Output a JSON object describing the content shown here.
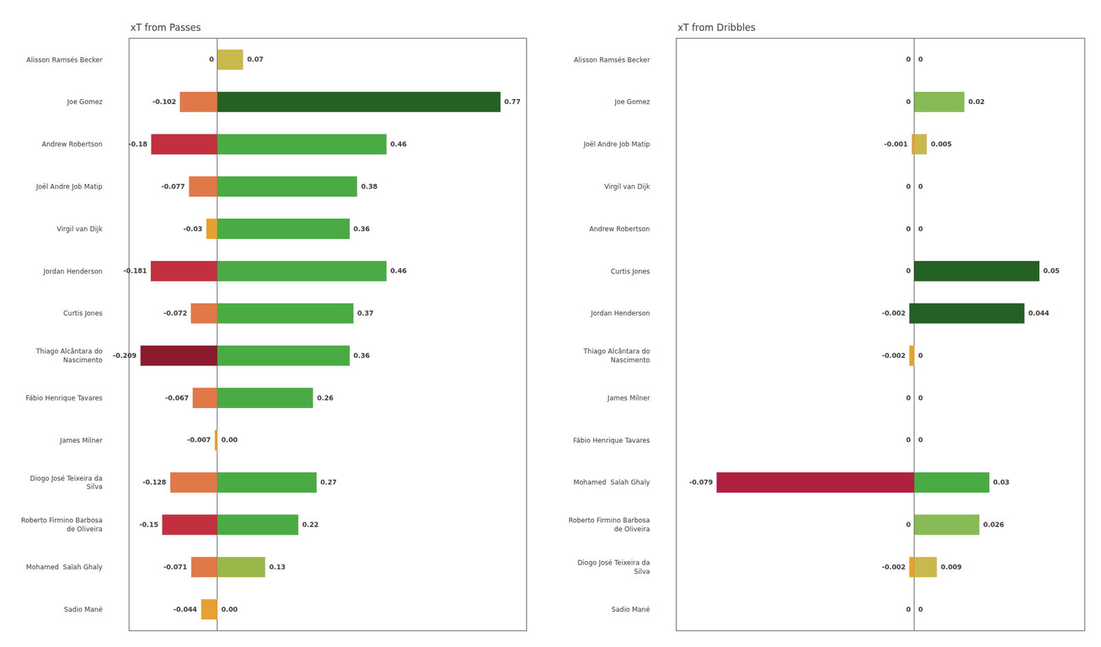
{
  "chart_data": [
    {
      "type": "bar",
      "orientation": "horizontal",
      "title": "xT from Passes",
      "categories": [
        "Alisson Ramsés Becker",
        "Joe Gomez",
        "Andrew Robertson",
        "Joël Andre Job Matip",
        "Virgil van Dijk",
        "Jordan Henderson",
        "Curtis Jones",
        "Thiago Alcântara do\nNascimento",
        "Fábio Henrique Tavares",
        "James Milner",
        "Diogo José Teixeira da\nSilva",
        "Roberto Firmino Barbosa\nde Oliveira",
        "Mohamed  Salah Ghaly",
        "Sadio Mané"
      ],
      "series": [
        {
          "values": [
            0.0,
            -0.102,
            -0.18,
            -0.077,
            -0.03,
            -0.181,
            -0.072,
            -0.209,
            -0.067,
            -0.007,
            -0.128,
            -0.15,
            -0.071,
            -0.044
          ],
          "value_labels": [
            "0",
            "-0.102",
            "-0.18",
            "-0.077",
            "-0.03",
            "-0.181",
            "-0.072",
            "-0.209",
            "-0.067",
            "-0.007",
            "-0.128",
            "-0.15",
            "-0.071",
            "-0.044"
          ],
          "colors": [
            null,
            "#e07848",
            "#c23040",
            "#e07848",
            "#e8a030",
            "#c23040",
            "#e07848",
            "#8b1a2e",
            "#e07848",
            "#e8a030",
            "#e07848",
            "#c23040",
            "#e07848",
            "#e8a030"
          ]
        },
        {
          "values": [
            0.07,
            0.77,
            0.46,
            0.38,
            0.36,
            0.46,
            0.37,
            0.36,
            0.26,
            0.0,
            0.27,
            0.22,
            0.13,
            0.0
          ],
          "value_labels": [
            "0.07",
            "0.77",
            "0.46",
            "0.38",
            "0.36",
            "0.46",
            "0.37",
            "0.36",
            "0.26",
            "0.00",
            "0.27",
            "0.22",
            "0.13",
            "0.00"
          ],
          "colors": [
            "#c9b84c",
            "#256025",
            "#4aaa44",
            "#4aaa44",
            "#4aaa44",
            "#4aaa44",
            "#4aaa44",
            "#4aaa44",
            "#4aaa44",
            null,
            "#4aaa44",
            "#4aaa44",
            "#9ab84a",
            null
          ]
        }
      ],
      "xlim": [
        -0.24,
        0.84
      ],
      "grid": false,
      "data_labels": true,
      "tick_labels": "y"
    },
    {
      "type": "bar",
      "orientation": "horizontal",
      "title": "xT from Dribbles",
      "categories": [
        "Alisson Ramsés Becker",
        "Joe Gomez",
        "Joël Andre Job Matip",
        "Virgil van Dijk",
        "Andrew Robertson",
        "Curtis Jones",
        "Jordan Henderson",
        "Thiago Alcântara do\nNascimento",
        "James Milner",
        "Fábio Henrique Tavares",
        "Mohamed  Salah Ghaly",
        "Roberto Firmino Barbosa\nde Oliveira",
        "Diogo José Teixeira da\nSilva",
        "Sadio Mané"
      ],
      "series": [
        {
          "values": [
            0.0,
            0.0,
            -0.001,
            0.0,
            0.0,
            0.0,
            -0.002,
            -0.002,
            0.0,
            0.0,
            -0.079,
            0.0,
            -0.002,
            0.0
          ],
          "value_labels": [
            "0",
            "0",
            "-0.001",
            "0",
            "0",
            "0",
            "-0.002",
            "-0.002",
            "0",
            "0",
            "-0.079",
            "0",
            "-0.002",
            "0"
          ],
          "colors": [
            null,
            null,
            "#e8a030",
            null,
            null,
            null,
            "#256025",
            "#e8a030",
            null,
            null,
            "#b02040",
            null,
            "#e8a030",
            null
          ]
        },
        {
          "values": [
            0.0,
            0.02,
            0.005,
            0.0,
            0.0,
            0.05,
            0.044,
            0.0,
            0.0,
            0.0,
            0.03,
            0.026,
            0.009,
            0.0
          ],
          "value_labels": [
            "0",
            "0.02",
            "0.005",
            "0",
            "0",
            "0.05",
            "0.044",
            "0",
            "0",
            "0",
            "0.03",
            "0.026",
            "0.009",
            "0"
          ],
          "colors": [
            null,
            "#88bb55",
            "#c9b84c",
            null,
            null,
            "#256025",
            "#256025",
            null,
            null,
            null,
            "#4aaa44",
            "#88bb55",
            "#c9b84c",
            null
          ]
        }
      ],
      "xlim": [
        -0.095,
        0.068
      ],
      "grid": false,
      "data_labels": true,
      "tick_labels": "y"
    }
  ]
}
